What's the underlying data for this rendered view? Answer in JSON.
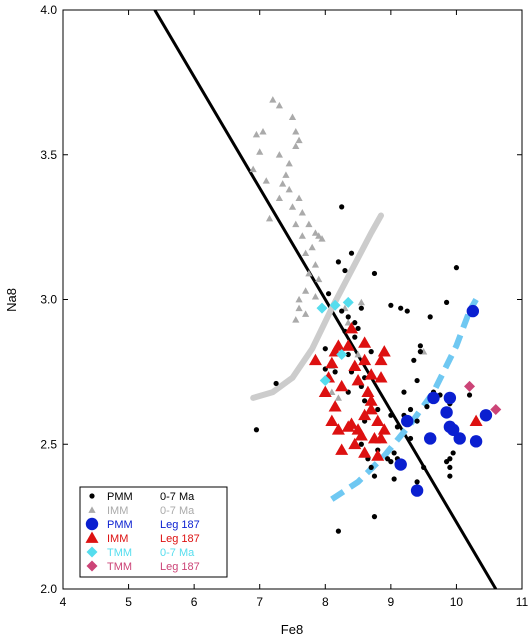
{
  "chart_data": {
    "type": "scatter",
    "xlabel": "Fe8",
    "ylabel": "Na8",
    "xlim": [
      4,
      11
    ],
    "ylim": [
      2.0,
      4.0
    ],
    "x_ticks": [
      4,
      5,
      6,
      7,
      8,
      9,
      10,
      11
    ],
    "y_ticks": [
      "2.0",
      "2.5",
      "3.0",
      "3.5",
      "4.0"
    ],
    "grid": false,
    "legend_position": "bottom-left",
    "legend": [
      {
        "symbol": "circle-small",
        "color": "#000000",
        "label": "PMM",
        "note": "0-7 Ma"
      },
      {
        "symbol": "triangle-small",
        "color": "#aaaaaa",
        "label": "IMM",
        "note": "0-7 Ma"
      },
      {
        "symbol": "circle-large",
        "color": "#0a1fd0",
        "label": "PMM",
        "note": "Leg 187"
      },
      {
        "symbol": "triangle-large",
        "color": "#dd1111",
        "label": "IMM",
        "note": "Leg 187"
      },
      {
        "symbol": "diamond",
        "color": "#55ddee",
        "label": "TMM",
        "note": "0-7 Ma"
      },
      {
        "symbol": "diamond",
        "color": "#cc4477",
        "label": "TMM",
        "note": "Leg 187"
      }
    ],
    "series": [
      {
        "key": "pmm_0_7",
        "symbol": "circle-small",
        "color": "#000000",
        "points": [
          [
            8.25,
            3.32
          ],
          [
            8.2,
            3.13
          ],
          [
            8.4,
            3.16
          ],
          [
            8.3,
            3.1
          ],
          [
            8.75,
            3.09
          ],
          [
            8.05,
            3.02
          ],
          [
            8.15,
            2.98
          ],
          [
            8.25,
            2.96
          ],
          [
            8.35,
            2.94
          ],
          [
            8.45,
            2.92
          ],
          [
            8.55,
            2.97
          ],
          [
            8.3,
            2.89
          ],
          [
            8.45,
            2.87
          ],
          [
            8.7,
            2.82
          ],
          [
            8.4,
            2.75
          ],
          [
            8.6,
            2.73
          ],
          [
            8.35,
            2.68
          ],
          [
            8.6,
            2.65
          ],
          [
            8.8,
            2.62
          ],
          [
            8.9,
            2.55
          ],
          [
            9.0,
            2.6
          ],
          [
            9.05,
            2.47
          ],
          [
            9.1,
            2.56
          ],
          [
            9.2,
            2.6
          ],
          [
            9.3,
            2.62
          ],
          [
            8.55,
            2.5
          ],
          [
            8.8,
            2.48
          ],
          [
            8.7,
            2.42
          ],
          [
            8.75,
            2.39
          ],
          [
            9.0,
            2.98
          ],
          [
            9.15,
            2.97
          ],
          [
            9.25,
            2.96
          ],
          [
            9.35,
            2.79
          ],
          [
            9.4,
            2.72
          ],
          [
            9.2,
            2.68
          ],
          [
            9.3,
            2.52
          ],
          [
            9.4,
            2.58
          ],
          [
            9.55,
            2.63
          ],
          [
            9.45,
            2.84
          ],
          [
            9.45,
            2.82
          ],
          [
            9.6,
            2.94
          ],
          [
            9.65,
            2.68
          ],
          [
            9.75,
            2.67
          ],
          [
            9.9,
            2.64
          ],
          [
            9.95,
            2.55
          ],
          [
            10.0,
            2.53
          ],
          [
            9.85,
            2.44
          ],
          [
            9.9,
            2.45
          ],
          [
            9.95,
            2.47
          ],
          [
            9.9,
            2.42
          ],
          [
            9.9,
            2.39
          ],
          [
            9.85,
            2.99
          ],
          [
            10.0,
            3.11
          ],
          [
            10.2,
            2.67
          ],
          [
            9.4,
            2.37
          ],
          [
            9.05,
            2.38
          ],
          [
            8.95,
            2.45
          ],
          [
            8.75,
            2.25
          ],
          [
            8.2,
            2.2
          ],
          [
            7.25,
            2.71
          ],
          [
            6.95,
            2.55
          ],
          [
            8.0,
            2.83
          ],
          [
            8.0,
            2.76
          ],
          [
            8.15,
            2.75
          ],
          [
            8.5,
            2.9
          ],
          [
            8.6,
            2.58
          ],
          [
            8.65,
            2.45
          ],
          [
            9.0,
            2.44
          ],
          [
            9.1,
            2.45
          ],
          [
            9.5,
            2.42
          ],
          [
            8.35,
            2.81
          ],
          [
            8.55,
            2.7
          ]
        ]
      },
      {
        "key": "imm_0_7",
        "symbol": "triangle-small",
        "color": "#aaaaaa",
        "points": [
          [
            7.2,
            3.69
          ],
          [
            7.3,
            3.67
          ],
          [
            7.5,
            3.63
          ],
          [
            7.55,
            3.58
          ],
          [
            7.6,
            3.55
          ],
          [
            7.05,
            3.58
          ],
          [
            6.95,
            3.57
          ],
          [
            7.0,
            3.51
          ],
          [
            7.3,
            3.5
          ],
          [
            7.55,
            3.53
          ],
          [
            7.45,
            3.47
          ],
          [
            6.9,
            3.45
          ],
          [
            7.1,
            3.41
          ],
          [
            7.35,
            3.4
          ],
          [
            7.45,
            3.38
          ],
          [
            7.3,
            3.35
          ],
          [
            7.5,
            3.32
          ],
          [
            7.6,
            3.35
          ],
          [
            7.65,
            3.3
          ],
          [
            7.15,
            3.28
          ],
          [
            7.55,
            3.26
          ],
          [
            7.75,
            3.26
          ],
          [
            7.85,
            3.23
          ],
          [
            7.9,
            3.22
          ],
          [
            7.95,
            3.21
          ],
          [
            7.8,
            3.18
          ],
          [
            7.7,
            3.16
          ],
          [
            7.85,
            3.12
          ],
          [
            7.75,
            3.09
          ],
          [
            7.9,
            3.07
          ],
          [
            7.7,
            3.03
          ],
          [
            7.6,
            3.0
          ],
          [
            7.85,
            3.01
          ],
          [
            7.6,
            2.97
          ],
          [
            7.7,
            2.95
          ],
          [
            7.55,
            2.93
          ],
          [
            8.3,
            2.97
          ],
          [
            8.55,
            2.99
          ],
          [
            8.35,
            2.92
          ],
          [
            8.6,
            2.85
          ],
          [
            8.5,
            2.81
          ],
          [
            8.1,
            2.68
          ],
          [
            8.2,
            2.66
          ],
          [
            8.1,
            2.77
          ],
          [
            9.5,
            2.82
          ],
          [
            7.65,
            3.22
          ],
          [
            7.4,
            3.43
          ]
        ]
      },
      {
        "key": "pmm_leg187",
        "symbol": "circle-large",
        "color": "#0a1fd0",
        "points": [
          [
            10.25,
            2.96
          ],
          [
            9.25,
            2.58
          ],
          [
            9.15,
            2.43
          ],
          [
            9.4,
            2.34
          ],
          [
            9.6,
            2.52
          ],
          [
            9.65,
            2.66
          ],
          [
            9.85,
            2.61
          ],
          [
            9.9,
            2.66
          ],
          [
            9.9,
            2.56
          ],
          [
            10.05,
            2.52
          ],
          [
            10.3,
            2.51
          ],
          [
            10.45,
            2.6
          ],
          [
            9.95,
            2.55
          ]
        ]
      },
      {
        "key": "imm_leg187",
        "symbol": "triangle-large",
        "color": "#dd1111",
        "points": [
          [
            7.85,
            2.79
          ],
          [
            8.1,
            2.78
          ],
          [
            8.05,
            2.73
          ],
          [
            8.15,
            2.82
          ],
          [
            8.2,
            2.84
          ],
          [
            8.0,
            2.68
          ],
          [
            8.25,
            2.7
          ],
          [
            8.4,
            2.9
          ],
          [
            8.35,
            2.84
          ],
          [
            8.45,
            2.77
          ],
          [
            8.5,
            2.72
          ],
          [
            8.6,
            2.85
          ],
          [
            8.6,
            2.79
          ],
          [
            8.7,
            2.74
          ],
          [
            8.85,
            2.79
          ],
          [
            8.9,
            2.82
          ],
          [
            8.85,
            2.73
          ],
          [
            8.65,
            2.68
          ],
          [
            8.7,
            2.65
          ],
          [
            8.7,
            2.62
          ],
          [
            8.6,
            2.6
          ],
          [
            8.8,
            2.58
          ],
          [
            8.75,
            2.52
          ],
          [
            8.9,
            2.55
          ],
          [
            8.55,
            2.53
          ],
          [
            8.4,
            2.57
          ],
          [
            8.45,
            2.5
          ],
          [
            8.2,
            2.55
          ],
          [
            8.25,
            2.48
          ],
          [
            8.1,
            2.58
          ],
          [
            8.6,
            2.47
          ],
          [
            8.8,
            2.46
          ],
          [
            8.85,
            2.52
          ],
          [
            8.35,
            2.56
          ],
          [
            10.3,
            2.58
          ],
          [
            8.15,
            2.63
          ],
          [
            8.5,
            2.55
          ]
        ]
      },
      {
        "key": "tmm_0_7",
        "symbol": "diamond",
        "color": "#55ddee",
        "points": [
          [
            7.95,
            2.97
          ],
          [
            8.15,
            2.98
          ],
          [
            8.35,
            2.99
          ],
          [
            8.25,
            2.81
          ],
          [
            8.0,
            2.72
          ]
        ]
      },
      {
        "key": "tmm_leg187",
        "symbol": "diamond",
        "color": "#cc4477",
        "points": [
          [
            10.2,
            2.7
          ],
          [
            10.6,
            2.62
          ]
        ]
      }
    ],
    "lines": [
      {
        "key": "regression",
        "style": "solid",
        "color": "#000000",
        "points": [
          [
            5.4,
            4.0
          ],
          [
            10.6,
            2.0
          ]
        ]
      },
      {
        "key": "grey-curve",
        "style": "solid",
        "color": "#cccccc",
        "points": [
          [
            6.9,
            2.66
          ],
          [
            7.2,
            2.68
          ],
          [
            7.5,
            2.73
          ],
          [
            7.8,
            2.83
          ],
          [
            8.1,
            2.97
          ],
          [
            8.4,
            3.1
          ],
          [
            8.7,
            3.23
          ],
          [
            8.85,
            3.29
          ]
        ]
      },
      {
        "key": "blue-dashed",
        "style": "dashed",
        "color": "#6fc8f2",
        "points": [
          [
            8.1,
            2.31
          ],
          [
            8.5,
            2.37
          ],
          [
            8.9,
            2.46
          ],
          [
            9.3,
            2.57
          ],
          [
            9.65,
            2.68
          ],
          [
            10.0,
            2.84
          ],
          [
            10.2,
            2.96
          ],
          [
            10.3,
            3.0
          ]
        ]
      }
    ]
  }
}
